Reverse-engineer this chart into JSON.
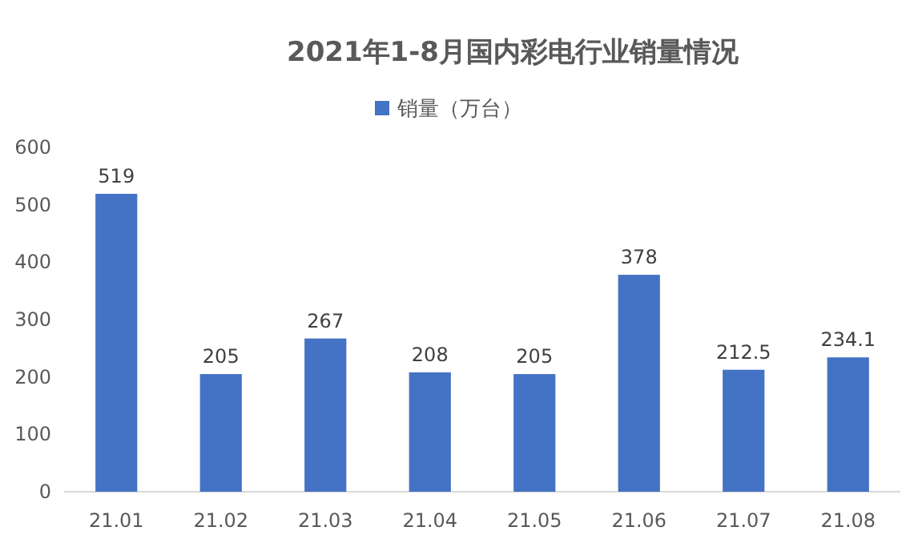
{
  "chart_data": {
    "type": "bar",
    "title": "2021年1-8月国内彩电行业销量情况",
    "categories": [
      "21.01",
      "21.02",
      "21.03",
      "21.04",
      "21.05",
      "21.06",
      "21.07",
      "21.08"
    ],
    "series": [
      {
        "name": "销量（万台）",
        "color": "#4472c4",
        "values": [
          519,
          205,
          267,
          208,
          205,
          378,
          212.5,
          234.1
        ]
      }
    ],
    "ylim": [
      0,
      600
    ],
    "yticks": [
      0,
      100,
      200,
      300,
      400,
      500,
      600
    ],
    "data_labels": true,
    "legend": "top",
    "grid": false
  }
}
